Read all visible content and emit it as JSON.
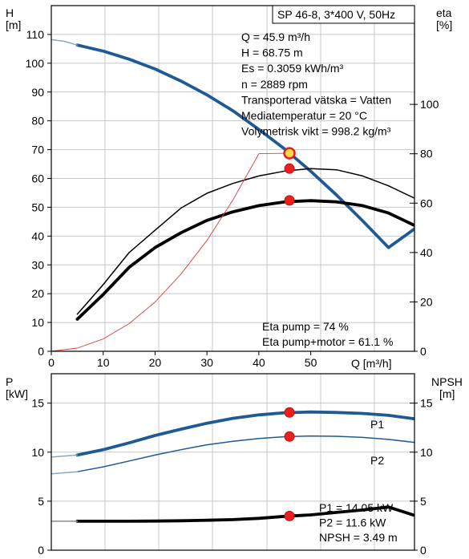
{
  "chart_data": [
    {
      "type": "line",
      "panel": "head-efficiency",
      "title": "SP 46-8, 3*400 V, 50Hz",
      "xlabel": "Q [m³/h]",
      "ylabel_left": [
        "H",
        "[m]"
      ],
      "ylabel_right": [
        "eta",
        "[%]"
      ],
      "xlim": [
        0,
        70
      ],
      "ylim_left": [
        0,
        120
      ],
      "ylim_right": [
        0,
        140
      ],
      "x_ticks": [
        0,
        10,
        20,
        30,
        40,
        50
      ],
      "y_ticks_left": [
        0,
        10,
        20,
        30,
        40,
        50,
        60,
        70,
        80,
        90,
        100,
        110
      ],
      "y_ticks_right": [
        0,
        20,
        40,
        60,
        80,
        100
      ],
      "grid": true,
      "series": [
        {
          "id": "head",
          "axis": "left",
          "color": "#1f5a94",
          "style": "thick",
          "x": [
            5,
            10,
            15,
            20,
            25,
            30,
            35,
            40,
            45,
            50,
            55,
            60,
            65,
            70
          ],
          "y": [
            106.3,
            104.2,
            101.4,
            98,
            93.8,
            89,
            83.5,
            77,
            70.2,
            62.5,
            54.2,
            45.3,
            36,
            42.5
          ]
        },
        {
          "id": "head-low-flow",
          "axis": "left",
          "color": "#8aa8c6",
          "style": "thin",
          "x": [
            0,
            2.5,
            5
          ],
          "y": [
            108.2,
            107.6,
            106.3
          ]
        },
        {
          "id": "eta-pump",
          "axis": "right",
          "color": "#000000",
          "style": "thin",
          "x": [
            5,
            10,
            15,
            20,
            25,
            30,
            35,
            40,
            45,
            50,
            55,
            60,
            65,
            70
          ],
          "y": [
            15,
            27,
            40,
            49,
            58,
            64,
            68,
            71,
            73,
            74,
            73.5,
            71,
            67,
            62
          ]
        },
        {
          "id": "eta-pump-motor",
          "axis": "right",
          "color": "#000000",
          "style": "thick",
          "x": [
            5,
            10,
            15,
            20,
            25,
            30,
            35,
            40,
            45,
            50,
            55,
            60,
            65,
            70
          ],
          "y": [
            13,
            23,
            34,
            42,
            48,
            53,
            56.5,
            59,
            60.5,
            61,
            60.5,
            59,
            56,
            51
          ]
        },
        {
          "id": "system-curve",
          "axis": "left",
          "color": "#e03c3c",
          "style": "hair",
          "x": [
            0,
            5,
            10,
            15,
            20,
            25,
            30,
            35,
            40,
            45.9
          ],
          "y": [
            0,
            1.1,
            4.3,
            9.6,
            17.1,
            26.8,
            38.5,
            52.5,
            68.6,
            68.75
          ]
        }
      ],
      "operating_points": [
        {
          "series": "head",
          "x": 45.9,
          "y": 68.75,
          "marker": "ring"
        },
        {
          "series": "eta-pump",
          "x": 45.9,
          "y": 74
        },
        {
          "series": "eta-pump-motor",
          "x": 45.9,
          "y": 61.1
        }
      ],
      "annotations": {
        "info": [
          "Q = 45.9 m³/h",
          "H = 68.75 m",
          "Es = 0.3059 kWh/m³",
          "n = 2889 rpm",
          "Transporterad vätska = Vatten",
          "Mediatemperatur = 20 °C",
          "Volymetrisk vikt = 998.2 kg/m³"
        ],
        "eta": [
          "Eta pump = 74 %",
          "Eta pump+motor = 61.1 %"
        ]
      }
    },
    {
      "type": "line",
      "panel": "power-npsh",
      "xlim": [
        0,
        70
      ],
      "ylim_left": [
        0,
        18
      ],
      "ylim_right": [
        0,
        18
      ],
      "ylabel_left": [
        "P",
        "[kW]"
      ],
      "ylabel_right": [
        "NPSH",
        "[m]"
      ],
      "y_ticks_left": [
        0,
        5,
        10,
        15
      ],
      "y_ticks_right": [
        0,
        5,
        10,
        15
      ],
      "grid": true,
      "series": [
        {
          "id": "p1",
          "name": "P1",
          "axis": "left",
          "color": "#1f5a94",
          "style": "thick",
          "x": [
            5,
            10,
            15,
            20,
            25,
            30,
            35,
            40,
            45,
            50,
            55,
            60,
            65,
            70
          ],
          "y": [
            9.7,
            10.25,
            10.95,
            11.7,
            12.35,
            12.95,
            13.45,
            13.8,
            14.02,
            14.1,
            14.05,
            13.95,
            13.75,
            13.4
          ]
        },
        {
          "id": "p1-low-flow",
          "axis": "left",
          "color": "#8aa8c6",
          "style": "thin",
          "x": [
            0,
            5
          ],
          "y": [
            9.5,
            9.7
          ]
        },
        {
          "id": "p2",
          "name": "P2",
          "axis": "left",
          "color": "#1f5a94",
          "style": "thin",
          "x": [
            5,
            10,
            15,
            20,
            25,
            30,
            35,
            40,
            45,
            50,
            55,
            60,
            65,
            70
          ],
          "y": [
            8.0,
            8.5,
            9.1,
            9.7,
            10.25,
            10.75,
            11.1,
            11.4,
            11.58,
            11.65,
            11.62,
            11.5,
            11.3,
            11.0
          ]
        },
        {
          "id": "p2-low-flow",
          "axis": "left",
          "color": "#8aa8c6",
          "style": "thin",
          "x": [
            0,
            5
          ],
          "y": [
            7.8,
            8.0
          ]
        },
        {
          "id": "npsh",
          "axis": "right",
          "color": "#000000",
          "style": "thick",
          "x": [
            5,
            10,
            15,
            20,
            25,
            30,
            35,
            40,
            45,
            50,
            55,
            60,
            65,
            70
          ],
          "y": [
            2.95,
            2.95,
            2.95,
            2.97,
            3.0,
            3.05,
            3.12,
            3.25,
            3.45,
            3.6,
            3.85,
            4.1,
            4.4,
            3.55
          ]
        },
        {
          "id": "npsh-low-flow",
          "axis": "right",
          "color": "#8c8c8c",
          "style": "thin",
          "x": [
            0,
            5
          ],
          "y": [
            2.95,
            2.95
          ]
        }
      ],
      "series_labels": [
        {
          "series": "p1",
          "text": "P1"
        },
        {
          "series": "p2",
          "text": "P2"
        }
      ],
      "operating_points": [
        {
          "series": "p1",
          "x": 45.9,
          "y": 14.05
        },
        {
          "series": "p2",
          "x": 45.9,
          "y": 11.6
        },
        {
          "series": "npsh",
          "x": 45.9,
          "y": 3.49
        }
      ],
      "annotations": {
        "values": [
          "P1 = 14.05 kW",
          "P2 = 11.6 kW",
          "NPSH = 3.49 m"
        ]
      }
    }
  ]
}
